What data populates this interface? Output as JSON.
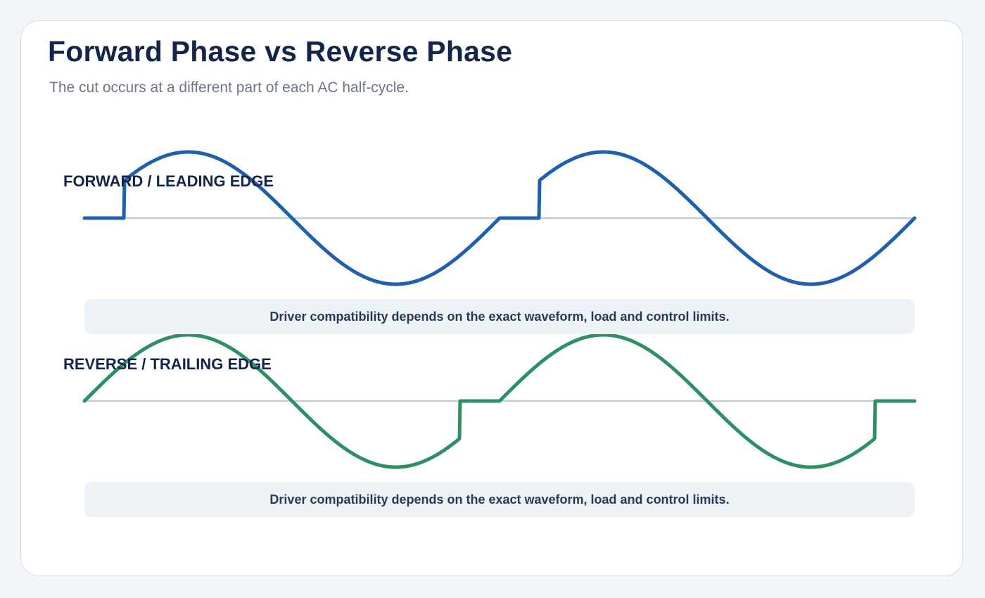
{
  "title": "Forward Phase vs Reverse Phase",
  "subtitle": "The cut occurs at a different part of each AC half-cycle.",
  "panels": [
    {
      "label": "FORWARD / LEADING EDGE",
      "note": "Driver compatibility depends on the exact waveform, load and control limits.",
      "color": "#1f5fae",
      "cut": "leading"
    },
    {
      "label": "REVERSE / TRAILING EDGE",
      "note": "Driver compatibility depends on the exact waveform, load and control limits.",
      "color": "#2e8f63",
      "cut": "trailing"
    }
  ]
}
